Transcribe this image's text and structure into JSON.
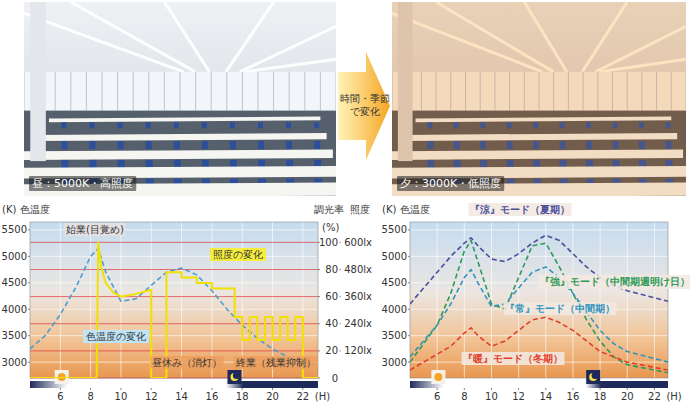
{
  "photos": [
    {
      "caption": "昼：5000K・高照度"
    },
    {
      "caption": "夕：3000K・低照度"
    }
  ],
  "arrow_label": "時間・季節で変化",
  "chart_data": [
    {
      "type": "line",
      "y_label": "(K) 色温度",
      "y2_label": "調光率",
      "y2_unit": "(%)",
      "y3_label": "照度",
      "x_unit": "(H)",
      "xlim": [
        4,
        23
      ],
      "xticks": [
        6,
        8,
        10,
        12,
        14,
        16,
        18,
        20,
        22
      ],
      "ylim": [
        2700,
        5650
      ],
      "yticks": [
        3000,
        3500,
        4000,
        4500,
        5000,
        5500
      ],
      "y2lim": [
        0,
        115
      ],
      "y2ticks": [
        0,
        20,
        40,
        60,
        80,
        100
      ],
      "y3lim": [
        0,
        690
      ],
      "y3ticks": [
        {
          "value": 120,
          "label": "120lx"
        },
        {
          "value": 240,
          "label": "240lx"
        },
        {
          "value": 360,
          "label": "360lx"
        },
        {
          "value": 480,
          "label": "480lx"
        },
        {
          "value": 600,
          "label": "600lx"
        }
      ],
      "grid": true,
      "series": [
        {
          "name": "色温度の変化",
          "color": "#4a9fd0",
          "line_style": "dashed",
          "x": [
            4,
            5,
            6,
            7,
            8,
            8.5,
            9,
            10,
            11,
            12,
            13,
            14,
            15,
            16,
            17,
            18,
            19,
            20,
            21,
            22,
            23
          ],
          "values": [
            3250,
            3500,
            3900,
            4400,
            5000,
            5150,
            4700,
            4150,
            4200,
            4450,
            4700,
            4780,
            4650,
            4350,
            4000,
            3700,
            3450,
            3250,
            3100,
            3000,
            2950
          ]
        },
        {
          "name": "照度の変化",
          "color": "#f2e000",
          "line_style": "solid",
          "axis": "y2",
          "x": [
            4,
            8.4,
            8.5,
            8.7,
            9,
            9.5,
            10,
            11,
            12,
            12,
            13,
            13,
            14,
            14,
            15,
            15,
            16,
            16,
            17.5,
            17.5,
            18,
            18,
            18.5,
            18.5,
            19,
            19,
            19.5,
            19.5,
            20,
            20,
            20.5,
            20.5,
            21,
            21,
            21.5,
            21.5,
            22,
            22,
            23
          ],
          "values": [
            0,
            0,
            100,
            82,
            70,
            63,
            60,
            62,
            65,
            0,
            0,
            78,
            78,
            74,
            74,
            70,
            70,
            66,
            66,
            45,
            45,
            28,
            28,
            45,
            45,
            28,
            28,
            45,
            45,
            28,
            28,
            45,
            45,
            28,
            28,
            45,
            45,
            0,
            0
          ]
        }
      ],
      "annotations": [
        "始業(目覚め)",
        "昼休み（消灯）",
        "終業（残業抑制）"
      ]
    },
    {
      "type": "line",
      "y_label": "(K) 色温度",
      "x_unit": "(H)",
      "xlim": [
        4,
        23
      ],
      "xticks": [
        6,
        8,
        10,
        12,
        14,
        16,
        18,
        20,
        22
      ],
      "ylim": [
        2700,
        5650
      ],
      "yticks": [
        3000,
        3500,
        4000,
        4500,
        5000,
        5500
      ],
      "grid": true,
      "series": [
        {
          "name": "『涼』モード（夏期）",
          "color": "#4b4f9e",
          "line_style": "dashed",
          "x": [
            4,
            6,
            7,
            8,
            8.5,
            9,
            10,
            11,
            12,
            13,
            14,
            15,
            16,
            17,
            18,
            19,
            20,
            23
          ],
          "values": [
            4100,
            4700,
            5000,
            5250,
            5350,
            5200,
            4950,
            4900,
            5050,
            5250,
            5400,
            5300,
            5050,
            4800,
            4600,
            4450,
            4350,
            4150
          ]
        },
        {
          "name": "『強』モード（中間期週明け日）",
          "color": "#2e9a5a",
          "line_style": "dashed",
          "x": [
            4,
            6,
            7,
            8,
            8.5,
            9,
            10,
            11,
            12,
            13,
            14,
            15,
            16,
            17,
            18,
            19,
            20,
            23
          ],
          "values": [
            3000,
            3700,
            4300,
            5100,
            5300,
            4900,
            4100,
            4000,
            4600,
            5200,
            5250,
            4800,
            4300,
            3800,
            3400,
            3100,
            2950,
            2800
          ]
        },
        {
          "name": "『常』モード（中間期）",
          "color": "#2f94bd",
          "line_style": "dashed",
          "x": [
            4,
            6,
            7,
            8,
            8.5,
            9,
            10,
            11,
            12,
            13,
            14,
            15,
            16,
            17,
            18,
            19,
            20,
            23
          ],
          "values": [
            3100,
            3700,
            4100,
            4600,
            4750,
            4500,
            4050,
            4100,
            4400,
            4700,
            4800,
            4600,
            4300,
            3950,
            3600,
            3350,
            3200,
            3000
          ]
        },
        {
          "name": "『暖』モード（冬期）",
          "color": "#e0402a",
          "line_style": "dashed",
          "x": [
            4,
            6,
            7,
            8,
            8.5,
            9,
            10,
            11,
            12,
            13,
            14,
            15,
            16,
            17,
            18,
            19,
            20,
            23
          ],
          "values": [
            2850,
            3150,
            3300,
            3550,
            3650,
            3500,
            3300,
            3400,
            3600,
            3800,
            3850,
            3750,
            3600,
            3400,
            3200,
            3100,
            3000,
            2850
          ]
        }
      ]
    }
  ]
}
